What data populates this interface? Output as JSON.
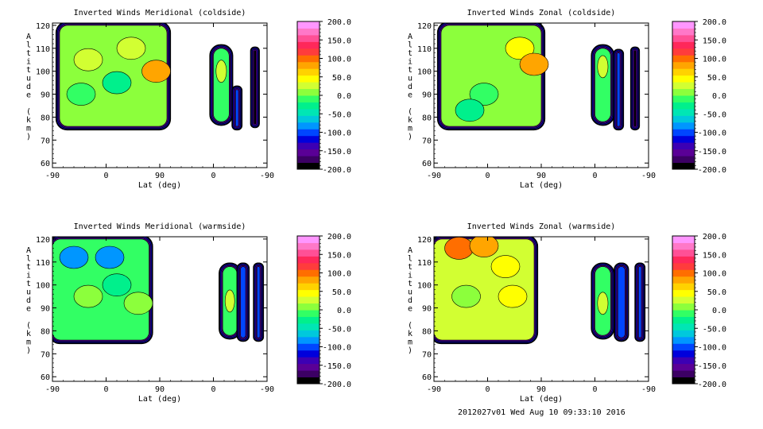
{
  "footer": "2012027v01 Wed Aug 10 09:33:10 2016",
  "palette": [
    "#000000",
    "#3c0064",
    "#5a0096",
    "#3c00b4",
    "#0000dc",
    "#0046ff",
    "#0096ff",
    "#00c8dc",
    "#00e6b4",
    "#00f08c",
    "#32ff64",
    "#8cff3c",
    "#d2ff32",
    "#ffff00",
    "#ffd200",
    "#ffa500",
    "#ff6e00",
    "#ff3c3c",
    "#ff285a",
    "#ff5096",
    "#ff78c8",
    "#ff96ff"
  ],
  "chart_data": [
    {
      "type": "heatmap",
      "title": "Inverted Winds Meridional (coldside)",
      "xlabel": "Lat (deg)",
      "ylabel": "Altitude (km)",
      "xticks": [
        "-90",
        "0",
        "90",
        "0",
        "-90"
      ],
      "ylim": [
        58,
        121
      ],
      "yticks": [
        60,
        70,
        80,
        90,
        100,
        110,
        120
      ],
      "colorbar": {
        "min": -200,
        "max": 200,
        "labels": [
          "200.0",
          "150.0",
          "100.0",
          "50.0",
          "0.0",
          "-50.0",
          "-100.0",
          "-150.0",
          "-200.0"
        ]
      },
      "regions": [
        {
          "x0": -80,
          "x1": 70,
          "y0": 76,
          "y1": 120,
          "fill": "#8cff3c",
          "blobs": [
            [
              -40,
              105,
              "#d2ff32"
            ],
            [
              0,
              95,
              "#00f08c"
            ],
            [
              20,
              110,
              "#d2ff32"
            ],
            [
              55,
              100,
              "#ffa500"
            ],
            [
              -50,
              90,
              "#32ff64"
            ]
          ]
        },
        {
          "x0": 135,
          "x1": 157,
          "y0": 78,
          "y1": 110,
          "fill": "#32ff64",
          "blobs": [
            [
              146,
              100,
              "#d2ff32"
            ]
          ]
        },
        {
          "x0": 166,
          "x1": 170,
          "y0": 76,
          "y1": 92,
          "fill": "#0046ff",
          "blobs": []
        },
        {
          "x0": 192,
          "x1": 193,
          "y0": 77,
          "y1": 109,
          "fill": "#000000",
          "blobs": []
        }
      ]
    },
    {
      "type": "heatmap",
      "title": "Inverted Winds Zonal (coldside)",
      "xlabel": "Lat (deg)",
      "ylabel": "Altitude (km)",
      "xticks": [
        "-90",
        "0",
        "90",
        "0",
        "-90"
      ],
      "ylim": [
        58,
        121
      ],
      "yticks": [
        60,
        70,
        80,
        90,
        100,
        110,
        120
      ],
      "colorbar": {
        "min": -200,
        "max": 200,
        "labels": [
          "200.0",
          "150.0",
          "100.0",
          "50.0",
          "0.0",
          "-50.0",
          "-100.0",
          "-150.0",
          "-200.0"
        ]
      },
      "regions": [
        {
          "x0": -80,
          "x1": 60,
          "y0": 76,
          "y1": 120,
          "fill": "#8cff3c",
          "blobs": [
            [
              30,
              110,
              "#ffff00"
            ],
            [
              50,
              103,
              "#ffa500"
            ],
            [
              -20,
              90,
              "#32ff64"
            ],
            [
              -40,
              83,
              "#00f08c"
            ]
          ]
        },
        {
          "x0": 135,
          "x1": 157,
          "y0": 78,
          "y1": 110,
          "fill": "#32ff64",
          "blobs": [
            [
              146,
              102,
              "#d2ff32"
            ]
          ]
        },
        {
          "x0": 166,
          "x1": 170,
          "y0": 76,
          "y1": 108,
          "fill": "#0046ff",
          "blobs": []
        },
        {
          "x0": 190,
          "x1": 191,
          "y0": 76,
          "y1": 109,
          "fill": "#000000",
          "blobs": []
        }
      ]
    },
    {
      "type": "heatmap",
      "title": "Inverted Winds Meridional (warmside)",
      "xlabel": "Lat (deg)",
      "ylabel": "Altitude (km)",
      "xticks": [
        "-90",
        "0",
        "90",
        "0",
        "-90"
      ],
      "ylim": [
        58,
        121
      ],
      "yticks": [
        60,
        70,
        80,
        90,
        100,
        110,
        120
      ],
      "colorbar": {
        "min": -200,
        "max": 200,
        "labels": [
          "200.0",
          "150.0",
          "100.0",
          "50.0",
          "0.0",
          "-50.0",
          "-100.0",
          "-150.0",
          "-200.0"
        ]
      },
      "regions": [
        {
          "x0": -90,
          "x1": 45,
          "y0": 76,
          "y1": 120,
          "fill": "#32ff64",
          "blobs": [
            [
              -60,
              112,
              "#0096ff"
            ],
            [
              -10,
              112,
              "#0096ff"
            ],
            [
              -40,
              95,
              "#8cff3c"
            ],
            [
              0,
              100,
              "#00f08c"
            ],
            [
              30,
              92,
              "#8cff3c"
            ]
          ]
        },
        {
          "x0": 148,
          "x1": 168,
          "y0": 78,
          "y1": 108,
          "fill": "#32ff64",
          "blobs": [
            [
              158,
              93,
              "#d2ff32"
            ]
          ]
        },
        {
          "x0": 173,
          "x1": 180,
          "y0": 77,
          "y1": 108,
          "fill": "#0046ff",
          "blobs": []
        },
        {
          "x0": 196,
          "x1": 200,
          "y0": 77,
          "y1": 108,
          "fill": "#0046ff",
          "blobs": []
        }
      ]
    },
    {
      "type": "heatmap",
      "title": "Inverted Winds Zonal (warmside)",
      "xlabel": "Lat (deg)",
      "ylabel": "Altitude (km)",
      "xticks": [
        "-90",
        "0",
        "90",
        "0",
        "-90"
      ],
      "ylim": [
        58,
        121
      ],
      "yticks": [
        60,
        70,
        80,
        90,
        100,
        110,
        120
      ],
      "colorbar": {
        "min": -200,
        "max": 200,
        "labels": [
          "200.0",
          "150.0",
          "100.0",
          "50.0",
          "0.0",
          "-50.0",
          "-100.0",
          "-150.0",
          "-200.0"
        ]
      },
      "regions": [
        {
          "x0": -90,
          "x1": 50,
          "y0": 76,
          "y1": 120,
          "fill": "#d2ff32",
          "blobs": [
            [
              -55,
              116,
              "#ff6e00"
            ],
            [
              -20,
              117,
              "#ffa500"
            ],
            [
              10,
              108,
              "#ffff00"
            ],
            [
              -45,
              95,
              "#8cff3c"
            ],
            [
              20,
              95,
              "#ffff00"
            ]
          ]
        },
        {
          "x0": 135,
          "x1": 157,
          "y0": 78,
          "y1": 108,
          "fill": "#32ff64",
          "blobs": [
            [
              146,
              92,
              "#d2ff32"
            ]
          ]
        },
        {
          "x0": 167,
          "x1": 177,
          "y0": 77,
          "y1": 108,
          "fill": "#0046ff",
          "blobs": []
        },
        {
          "x0": 196,
          "x1": 200,
          "y0": 77,
          "y1": 108,
          "fill": "#0046ff",
          "blobs": []
        }
      ]
    }
  ]
}
